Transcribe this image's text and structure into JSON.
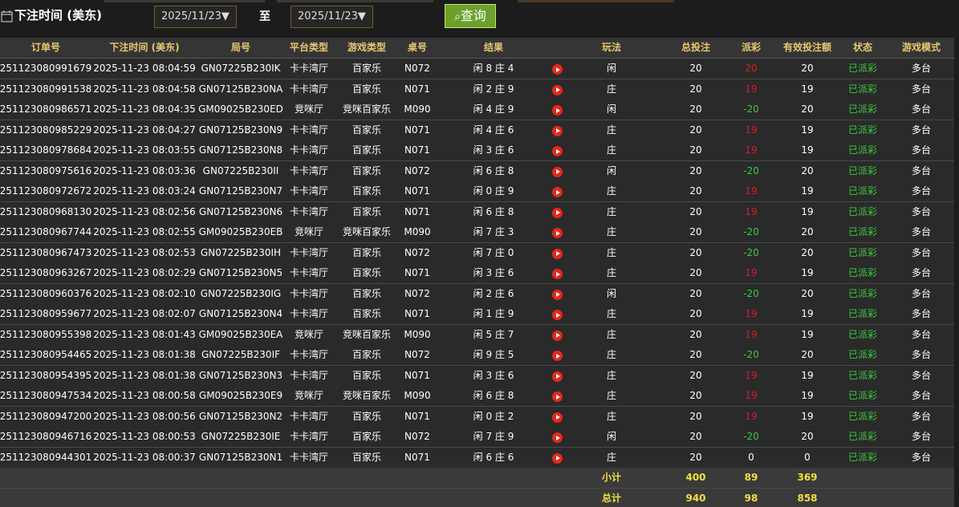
{
  "header": {
    "title": "下注时间 (美东)",
    "date_from": "2025/11/23▼",
    "separator": "至",
    "date_to": "2025/11/23▼",
    "button": "查询"
  },
  "table": {
    "columns": [
      "订单号",
      "下注时间 (美东)",
      "局号",
      "平台类型",
      "游戏类型",
      "桌号",
      "结果",
      "玩法",
      "总投注",
      "派彩",
      "有效投注额",
      "状态",
      "游戏模式"
    ],
    "rows": [
      [
        "251123080991679",
        "2025-11-23 08:04:59",
        "GN07225B230IK",
        "卡卡湾厅",
        "百家乐",
        "N072",
        "闲 8 庄 4",
        "闲",
        20,
        20,
        20,
        "已派彩",
        "多台"
      ],
      [
        "251123080991538",
        "2025-11-23 08:04:58",
        "GN07125B230NA",
        "卡卡湾厅",
        "百家乐",
        "N071",
        "闲 2 庄 9",
        "庄",
        20,
        19,
        19,
        "已派彩",
        "多台"
      ],
      [
        "251123080986571",
        "2025-11-23 08:04:35",
        "GM09025B230ED",
        "竞咪厅",
        "竞咪百家乐",
        "M090",
        "闲 4 庄 9",
        "闲",
        20,
        -20,
        20,
        "已派彩",
        "多台"
      ],
      [
        "251123080985229",
        "2025-11-23 08:04:27",
        "GN07125B230N9",
        "卡卡湾厅",
        "百家乐",
        "N071",
        "闲 4 庄 6",
        "庄",
        20,
        19,
        19,
        "已派彩",
        "多台"
      ],
      [
        "251123080978684",
        "2025-11-23 08:03:55",
        "GN07125B230N8",
        "卡卡湾厅",
        "百家乐",
        "N071",
        "闲 3 庄 6",
        "庄",
        20,
        19,
        19,
        "已派彩",
        "多台"
      ],
      [
        "251123080975616",
        "2025-11-23 08:03:36",
        "GN07225B230II",
        "卡卡湾厅",
        "百家乐",
        "N072",
        "闲 6 庄 8",
        "闲",
        20,
        -20,
        20,
        "已派彩",
        "多台"
      ],
      [
        "251123080972672",
        "2025-11-23 08:03:24",
        "GN07125B230N7",
        "卡卡湾厅",
        "百家乐",
        "N071",
        "闲 0 庄 9",
        "庄",
        20,
        19,
        19,
        "已派彩",
        "多台"
      ],
      [
        "251123080968130",
        "2025-11-23 08:02:56",
        "GN07125B230N6",
        "卡卡湾厅",
        "百家乐",
        "N071",
        "闲 6 庄 8",
        "庄",
        20,
        19,
        19,
        "已派彩",
        "多台"
      ],
      [
        "251123080967744",
        "2025-11-23 08:02:55",
        "GM09025B230EB",
        "竞咪厅",
        "竞咪百家乐",
        "M090",
        "闲 7 庄 3",
        "庄",
        20,
        -20,
        20,
        "已派彩",
        "多台"
      ],
      [
        "251123080967473",
        "2025-11-23 08:02:53",
        "GN07225B230IH",
        "卡卡湾厅",
        "百家乐",
        "N072",
        "闲 7 庄 0",
        "庄",
        20,
        -20,
        20,
        "已派彩",
        "多台"
      ],
      [
        "251123080963267",
        "2025-11-23 08:02:29",
        "GN07125B230N5",
        "卡卡湾厅",
        "百家乐",
        "N071",
        "闲 3 庄 6",
        "庄",
        20,
        19,
        19,
        "已派彩",
        "多台"
      ],
      [
        "251123080960376",
        "2025-11-23 08:02:10",
        "GN07225B230IG",
        "卡卡湾厅",
        "百家乐",
        "N072",
        "闲 2 庄 6",
        "闲",
        20,
        -20,
        20,
        "已派彩",
        "多台"
      ],
      [
        "251123080959677",
        "2025-11-23 08:02:07",
        "GN07125B230N4",
        "卡卡湾厅",
        "百家乐",
        "N071",
        "闲 1 庄 9",
        "庄",
        20,
        19,
        19,
        "已派彩",
        "多台"
      ],
      [
        "251123080955398",
        "2025-11-23 08:01:43",
        "GM09025B230EA",
        "竞咪厅",
        "竞咪百家乐",
        "M090",
        "闲 5 庄 7",
        "庄",
        20,
        19,
        19,
        "已派彩",
        "多台"
      ],
      [
        "251123080954465",
        "2025-11-23 08:01:38",
        "GN07225B230IF",
        "卡卡湾厅",
        "百家乐",
        "N072",
        "闲 9 庄 5",
        "庄",
        20,
        -20,
        20,
        "已派彩",
        "多台"
      ],
      [
        "251123080954395",
        "2025-11-23 08:01:38",
        "GN07125B230N3",
        "卡卡湾厅",
        "百家乐",
        "N071",
        "闲 3 庄 6",
        "庄",
        20,
        19,
        19,
        "已派彩",
        "多台"
      ],
      [
        "251123080947534",
        "2025-11-23 08:00:58",
        "GM09025B230E9",
        "竞咪厅",
        "竞咪百家乐",
        "M090",
        "闲 6 庄 8",
        "庄",
        20,
        19,
        19,
        "已派彩",
        "多台"
      ],
      [
        "251123080947200",
        "2025-11-23 08:00:56",
        "GN07125B230N2",
        "卡卡湾厅",
        "百家乐",
        "N071",
        "闲 0 庄 2",
        "庄",
        20,
        19,
        19,
        "已派彩",
        "多台"
      ],
      [
        "251123080946716",
        "2025-11-23 08:00:53",
        "GN07225B230IE",
        "卡卡湾厅",
        "百家乐",
        "N072",
        "闲 7 庄 9",
        "闲",
        20,
        -20,
        20,
        "已派彩",
        "多台"
      ],
      [
        "251123080944301",
        "2025-11-23 08:00:37",
        "GN07125B230N1",
        "卡卡湾厅",
        "百家乐",
        "N071",
        "闲 6 庄 6",
        "庄",
        20,
        0,
        0,
        "已派彩",
        "多台"
      ]
    ],
    "subtotal": {
      "label": "小计",
      "values": [
        400,
        89,
        369
      ]
    },
    "total": {
      "label": "总计",
      "values": [
        940,
        98,
        858
      ]
    }
  }
}
